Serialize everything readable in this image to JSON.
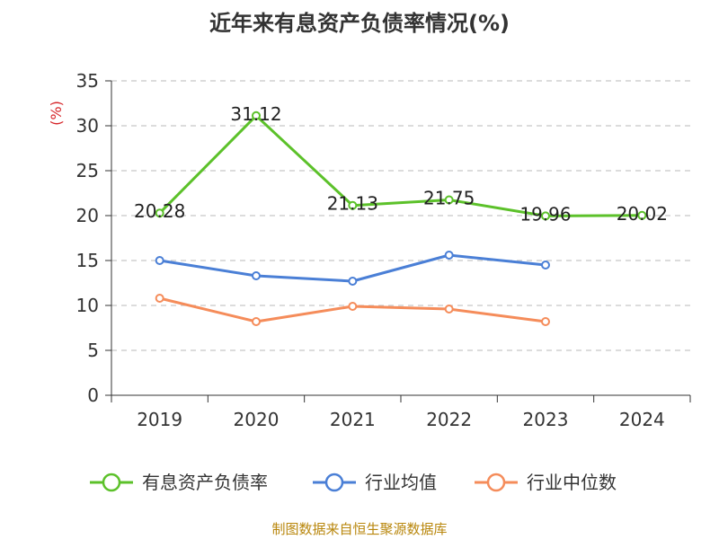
{
  "chart_data": {
    "type": "line",
    "title": "近年来有息资产负债率情况(%)",
    "ylabel": "(%)",
    "categories": [
      "2019",
      "2020",
      "2021",
      "2022",
      "2023",
      "2024"
    ],
    "ylim": [
      0,
      35
    ],
    "yticks": [
      0,
      5,
      10,
      15,
      20,
      25,
      30,
      35
    ],
    "grid": true,
    "legend_position": "bottom",
    "series": [
      {
        "name": "有息资产负债率",
        "color": "#5cc12a",
        "values": [
          20.28,
          31.12,
          21.13,
          21.75,
          19.96,
          20.02
        ],
        "labels": [
          "20.28",
          "31.12",
          "21.13",
          "21.75",
          "19.96",
          "20.02"
        ]
      },
      {
        "name": "行业均值",
        "color": "#4a7fd6",
        "values": [
          15.0,
          13.3,
          12.7,
          15.6,
          14.5,
          null
        ]
      },
      {
        "name": "行业中位数",
        "color": "#f58c5a",
        "values": [
          10.8,
          8.2,
          9.9,
          9.6,
          8.2,
          null
        ]
      }
    ]
  },
  "source": "制图数据来自恒生聚源数据库"
}
